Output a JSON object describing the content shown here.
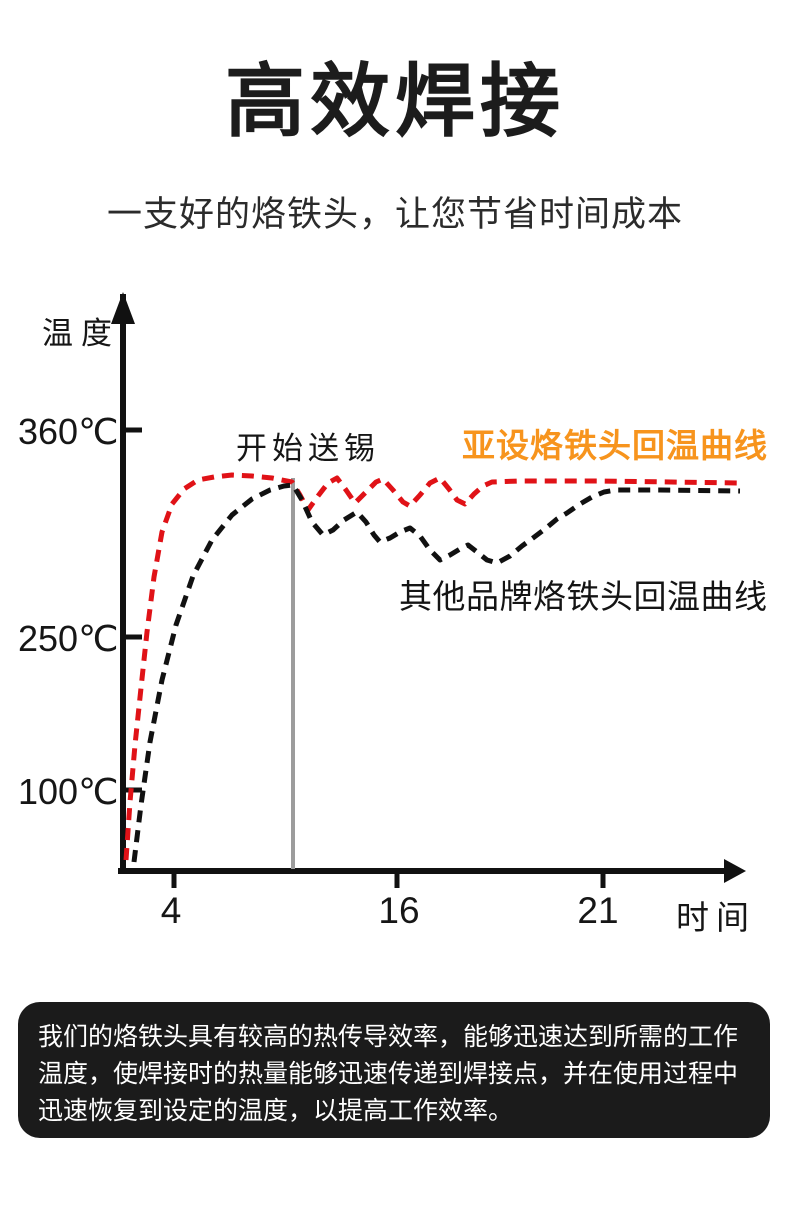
{
  "header": {
    "title": "高效焊接",
    "subtitle": "一支好的烙铁头，让您节省时间成本"
  },
  "chart": {
    "y_axis_label": "温度",
    "x_axis_label": "时间",
    "y_ticks": [
      "360℃",
      "250℃",
      "100℃"
    ],
    "x_ticks": [
      "4",
      "16",
      "21"
    ],
    "annotation": "开始送锡",
    "legend": [
      {
        "label": "亚设烙铁头回温曲线",
        "color": "#f7941d"
      },
      {
        "label": "其他品牌烙铁头回温曲线",
        "color": "#141414"
      }
    ]
  },
  "chart_data": {
    "type": "line",
    "title": "",
    "xlabel": "时间",
    "ylabel": "温度",
    "x_ticks": [
      4,
      16,
      21
    ],
    "y_ticks_celsius": [
      100,
      250,
      360
    ],
    "grid": false,
    "legend_position": "inline-right",
    "annotation": {
      "label": "开始送锡",
      "x": 10,
      "marker": "vertical-gray-line"
    },
    "series": [
      {
        "name": "亚设烙铁头回温曲线",
        "color": "#e01217",
        "line_style": "dashed",
        "x": [
          3,
          3.5,
          4,
          4.5,
          5,
          6,
          7,
          8,
          9,
          10,
          10.5,
          11,
          11.5,
          12,
          12.5,
          13,
          13.5,
          14,
          15,
          16,
          18,
          21,
          23
        ],
        "y": [
          40,
          120,
          210,
          280,
          320,
          340,
          345,
          346,
          345,
          343,
          322,
          342,
          325,
          343,
          324,
          344,
          326,
          342,
          340,
          341,
          341,
          341,
          341
        ]
      },
      {
        "name": "其他品牌烙铁头回温曲线",
        "color": "#111111",
        "line_style": "dashed",
        "x": [
          3.2,
          4,
          5,
          6,
          7,
          8,
          9,
          10,
          10.6,
          11.2,
          11.8,
          12.4,
          13,
          13.6,
          14.2,
          14.8,
          15.4,
          16,
          17,
          18,
          19,
          20,
          21,
          23
        ],
        "y": [
          35,
          110,
          190,
          250,
          295,
          320,
          335,
          342,
          318,
          328,
          312,
          320,
          300,
          308,
          292,
          298,
          285,
          295,
          312,
          326,
          336,
          340,
          340,
          340
        ]
      }
    ]
  },
  "render": {
    "axis_color": "#111111",
    "marker_line_color": "#9c9c9c",
    "curves": [
      {
        "name": "yashe-curve",
        "color": "#e01217",
        "dash": "12 8",
        "width": 5,
        "points": [
          [
            126,
            580
          ],
          [
            130,
            522
          ],
          [
            135,
            465
          ],
          [
            141,
            408
          ],
          [
            147,
            352
          ],
          [
            154,
            297
          ],
          [
            162,
            252
          ],
          [
            172,
            224
          ],
          [
            184,
            209
          ],
          [
            198,
            200
          ],
          [
            214,
            197
          ],
          [
            232,
            195
          ],
          [
            252,
            196
          ],
          [
            272,
            198
          ],
          [
            292,
            202
          ],
          [
            300,
            215
          ],
          [
            308,
            230
          ],
          [
            318,
            216
          ],
          [
            328,
            203
          ],
          [
            337,
            198
          ],
          [
            346,
            210
          ],
          [
            355,
            223
          ],
          [
            366,
            212
          ],
          [
            376,
            202
          ],
          [
            383,
            199
          ],
          [
            393,
            210
          ],
          [
            403,
            222
          ],
          [
            410,
            226
          ],
          [
            420,
            215
          ],
          [
            430,
            203
          ],
          [
            440,
            198
          ],
          [
            449,
            209
          ],
          [
            457,
            220
          ],
          [
            465,
            224
          ],
          [
            474,
            214
          ],
          [
            483,
            206
          ],
          [
            492,
            202
          ],
          [
            520,
            201
          ],
          [
            600,
            201
          ],
          [
            740,
            203
          ]
        ]
      },
      {
        "name": "other-brand-curve",
        "color": "#111111",
        "dash": "12 8",
        "width": 5,
        "points": [
          [
            134,
            582
          ],
          [
            141,
            525
          ],
          [
            150,
            462
          ],
          [
            162,
            400
          ],
          [
            176,
            345
          ],
          [
            193,
            296
          ],
          [
            212,
            260
          ],
          [
            232,
            235
          ],
          [
            252,
            219
          ],
          [
            270,
            210
          ],
          [
            284,
            206
          ],
          [
            293,
            205
          ],
          [
            302,
            220
          ],
          [
            312,
            242
          ],
          [
            323,
            255
          ],
          [
            333,
            250
          ],
          [
            344,
            240
          ],
          [
            357,
            232
          ],
          [
            366,
            242
          ],
          [
            374,
            255
          ],
          [
            380,
            262
          ],
          [
            390,
            258
          ],
          [
            400,
            252
          ],
          [
            410,
            248
          ],
          [
            420,
            256
          ],
          [
            430,
            270
          ],
          [
            440,
            280
          ],
          [
            450,
            275
          ],
          [
            460,
            269
          ],
          [
            468,
            265
          ],
          [
            477,
            272
          ],
          [
            487,
            280
          ],
          [
            497,
            283
          ],
          [
            510,
            276
          ],
          [
            522,
            266
          ],
          [
            533,
            258
          ],
          [
            545,
            249
          ],
          [
            557,
            239
          ],
          [
            567,
            233
          ],
          [
            580,
            224
          ],
          [
            592,
            217
          ],
          [
            604,
            212
          ],
          [
            616,
            210
          ],
          [
            660,
            210
          ],
          [
            740,
            211
          ]
        ]
      }
    ]
  },
  "footer": {
    "text": "我们的烙铁头具有较高的热传导效率，能够迅速达到所需的工作温度，使焊接时的热量能够迅速传递到焊接点，并在使用过程中迅速恢复到设定的温度，以提高工作效率。"
  }
}
